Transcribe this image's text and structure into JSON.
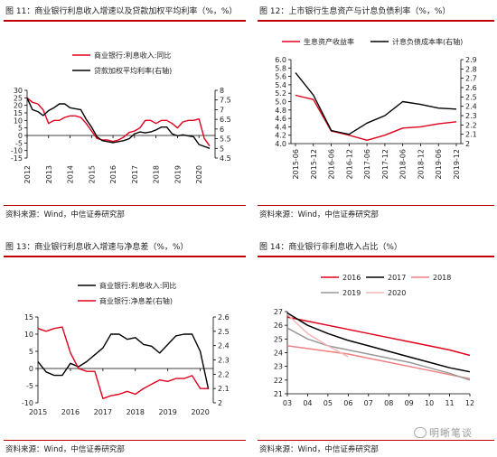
{
  "panels": [
    {
      "title": "图 11：商业银行利息收入增速以及贷款加权平均利率（%，%）",
      "source": "资料来源：Wind，中信证券研究部"
    },
    {
      "title": "图 12：上市银行生息资产与计息负债利率（%，%）",
      "source": "资料来源：Wind，中信证券研究部"
    },
    {
      "title": "图 13：商业银行利息收入增速与净息差（%，%）",
      "source": "资料来源：Wind，中信证券研究部"
    },
    {
      "title": "图 14：商业银行非利息收入占比（%）",
      "source": "资料来源：Wind，中信证券研究部"
    }
  ],
  "watermark": "明晰笔谈",
  "colors": {
    "red": "#e0001b",
    "black": "#000000",
    "rule": "#c00000",
    "pink": "#f08080",
    "gray": "#999999",
    "lightpink": "#f4b6b6"
  },
  "chart_data": [
    {
      "type": "line",
      "xlabels": [
        "2012",
        "2013",
        "2014",
        "2015",
        "2016",
        "2017",
        "2018",
        "2019",
        "2020"
      ],
      "xrange": [
        2012,
        2020.75
      ],
      "yleft": {
        "range": [
          -15,
          30
        ],
        "ticks": [
          "-15",
          "-10",
          "-5",
          "0",
          "5",
          "10",
          "15",
          "20",
          "25",
          "30"
        ]
      },
      "yright": {
        "range": [
          4.5,
          8
        ],
        "ticks": [
          "4.5",
          "5",
          "5.5",
          "6",
          "6.5",
          "7",
          "7.5",
          "8"
        ]
      },
      "legend_placement": "top-right",
      "series": [
        {
          "name": "商业银行:利息收入:同比",
          "axis": "left",
          "color": "red",
          "x": [
            2012,
            2012.25,
            2012.5,
            2012.75,
            2013,
            2013.25,
            2013.5,
            2013.75,
            2014,
            2014.25,
            2014.5,
            2014.75,
            2015,
            2015.25,
            2015.5,
            2015.75,
            2016,
            2016.25,
            2016.5,
            2016.75,
            2017,
            2017.25,
            2017.5,
            2017.75,
            2018,
            2018.25,
            2018.5,
            2018.75,
            2019,
            2019.25,
            2019.5,
            2019.75,
            2020,
            2020.25,
            2020.5
          ],
          "y": [
            25,
            22,
            21,
            17,
            8,
            10,
            10,
            12,
            13,
            13,
            12,
            8,
            3,
            -2,
            -3,
            -3,
            -4,
            -3,
            -1,
            2,
            3,
            5,
            10,
            10,
            8,
            10,
            10,
            8,
            5,
            9,
            10,
            10,
            11,
            -2,
            -7
          ]
        },
        {
          "name": "贷款加权平均利率(右轴)",
          "axis": "right",
          "color": "black",
          "x": [
            2012,
            2012.25,
            2012.5,
            2012.75,
            2013,
            2013.25,
            2013.5,
            2013.75,
            2014,
            2014.25,
            2014.5,
            2014.75,
            2015,
            2015.25,
            2015.5,
            2015.75,
            2016,
            2016.25,
            2016.5,
            2016.75,
            2017,
            2017.25,
            2017.5,
            2017.75,
            2018,
            2018.25,
            2018.5,
            2018.75,
            2019,
            2019.25,
            2019.5,
            2019.75,
            2020,
            2020.25,
            2020.5
          ],
          "y": [
            7.6,
            7.0,
            6.9,
            6.7,
            6.95,
            7.1,
            7.3,
            7.3,
            7.1,
            7.05,
            7.0,
            6.5,
            6.1,
            5.6,
            5.4,
            5.35,
            5.3,
            5.35,
            5.4,
            5.5,
            5.75,
            5.85,
            5.8,
            5.85,
            5.95,
            6.1,
            6.1,
            5.75,
            5.65,
            5.7,
            5.65,
            5.6,
            5.2,
            5.1,
            5.0
          ]
        }
      ]
    },
    {
      "type": "line",
      "xlabels": [
        "2015-06",
        "2015-12",
        "2016-06",
        "2016-12",
        "2017-06",
        "2017-12",
        "2018-06",
        "2018-12",
        "2019-06",
        "2019-12"
      ],
      "yleft": {
        "range": [
          4.0,
          6.0
        ],
        "ticks": [
          "4.0",
          "4.2",
          "4.4",
          "4.6",
          "4.8",
          "5.0",
          "5.2",
          "5.4",
          "5.6",
          "5.8",
          "6.0"
        ]
      },
      "yright": {
        "range": [
          2.0,
          2.9
        ],
        "ticks": [
          "2",
          "2.1",
          "2.2",
          "2.3",
          "2.4",
          "2.5",
          "2.6",
          "2.7",
          "2.8",
          "2.9"
        ]
      },
      "legend_placement": "top",
      "series": [
        {
          "name": "生息资产收益率",
          "axis": "left",
          "color": "red",
          "x": [
            "2015-06",
            "2015-12",
            "2016-06",
            "2016-12",
            "2017-06",
            "2017-12",
            "2018-06",
            "2018-12",
            "2019-06",
            "2019-12"
          ],
          "y": [
            5.15,
            5.05,
            4.3,
            4.2,
            4.08,
            4.2,
            4.37,
            4.4,
            4.47,
            4.52
          ]
        },
        {
          "name": "计息负债成本率(右轴)",
          "axis": "right",
          "color": "black",
          "x": [
            "2015-06",
            "2015-12",
            "2016-06",
            "2016-12",
            "2017-06",
            "2017-12",
            "2018-06",
            "2018-12",
            "2019-06",
            "2019-12"
          ],
          "y": [
            2.76,
            2.52,
            2.14,
            2.1,
            2.22,
            2.3,
            2.45,
            2.42,
            2.38,
            2.37
          ]
        }
      ]
    },
    {
      "type": "line",
      "xlabels": [
        "2015",
        "2016",
        "2017",
        "2018",
        "2019",
        "2020"
      ],
      "xrange": [
        2015,
        2020.4
      ],
      "yleft": {
        "range": [
          -10,
          15
        ],
        "ticks": [
          "-10",
          "-5",
          "0",
          "5",
          "10",
          "15"
        ]
      },
      "yright": {
        "range": [
          2.0,
          2.6
        ],
        "ticks": [
          "2",
          "2.1",
          "2.2",
          "2.3",
          "2.4",
          "2.5",
          "2.6"
        ]
      },
      "legend_placement": "top-right",
      "series": [
        {
          "name": "商业银行:利息收入:同比",
          "axis": "left",
          "color": "black",
          "x": [
            2015,
            2015.25,
            2015.5,
            2015.75,
            2016,
            2016.25,
            2016.5,
            2016.75,
            2017,
            2017.25,
            2017.5,
            2017.75,
            2018,
            2018.25,
            2018.5,
            2018.75,
            2019,
            2019.25,
            2019.5,
            2019.75,
            2020,
            2020.25
          ],
          "y": [
            2,
            -1,
            -2,
            -2,
            1.5,
            0.5,
            2,
            4,
            6,
            10,
            10,
            8.5,
            9,
            7,
            6.5,
            4.5,
            7,
            9.5,
            10,
            10,
            5,
            -6
          ]
        },
        {
          "name": "商业银行:净息差(右轴)",
          "axis": "right",
          "color": "red",
          "x": [
            2015,
            2015.25,
            2015.5,
            2015.75,
            2016,
            2016.25,
            2016.5,
            2016.75,
            2017,
            2017.25,
            2017.5,
            2017.75,
            2018,
            2018.25,
            2018.5,
            2018.75,
            2019,
            2019.25,
            2019.5,
            2019.75,
            2020,
            2020.25
          ],
          "y": [
            2.52,
            2.5,
            2.52,
            2.53,
            2.35,
            2.24,
            2.22,
            2.22,
            2.03,
            2.05,
            2.06,
            2.08,
            2.06,
            2.1,
            2.13,
            2.16,
            2.15,
            2.17,
            2.17,
            2.19,
            2.1,
            2.1
          ]
        }
      ]
    },
    {
      "type": "line",
      "xlabels": [
        "03",
        "04",
        "05",
        "06",
        "07",
        "08",
        "09",
        "10",
        "11",
        "12"
      ],
      "yleft": {
        "range": [
          21,
          27
        ],
        "ticks": [
          "21",
          "22",
          "23",
          "24",
          "25",
          "26",
          "27"
        ]
      },
      "legend_placement": "top",
      "series": [
        {
          "name": "2016",
          "color": "red",
          "x": [
            3,
            4,
            5,
            6,
            7,
            8,
            9,
            10,
            11,
            12
          ],
          "y": [
            26.6,
            26.3,
            26.0,
            25.7,
            25.4,
            25.1,
            24.8,
            24.5,
            24.2,
            23.8
          ]
        },
        {
          "name": "2017",
          "color": "black",
          "x": [
            3,
            4,
            5,
            6,
            7,
            8,
            9,
            10,
            11,
            12
          ],
          "y": [
            26.9,
            26.0,
            25.4,
            24.9,
            24.5,
            24.1,
            23.7,
            23.3,
            22.9,
            22.6
          ]
        },
        {
          "name": "2018",
          "color": "pink",
          "x": [
            3,
            4,
            5,
            6,
            7,
            8,
            9,
            10,
            11,
            12
          ],
          "y": [
            24.5,
            24.3,
            24.1,
            23.9,
            23.6,
            23.3,
            23.0,
            22.7,
            22.4,
            22.1
          ]
        },
        {
          "name": "2019",
          "color": "gray",
          "x": [
            3,
            4,
            5,
            6,
            7,
            8,
            9,
            10,
            11,
            12
          ],
          "y": [
            25.8,
            25.0,
            24.5,
            24.2,
            23.9,
            23.6,
            23.3,
            22.9,
            22.5,
            22.0
          ]
        },
        {
          "name": "2020",
          "color": "lightpink",
          "x": [
            3,
            4,
            5,
            6
          ],
          "y": [
            26.8,
            25.4,
            24.5,
            23.7
          ]
        }
      ]
    }
  ]
}
